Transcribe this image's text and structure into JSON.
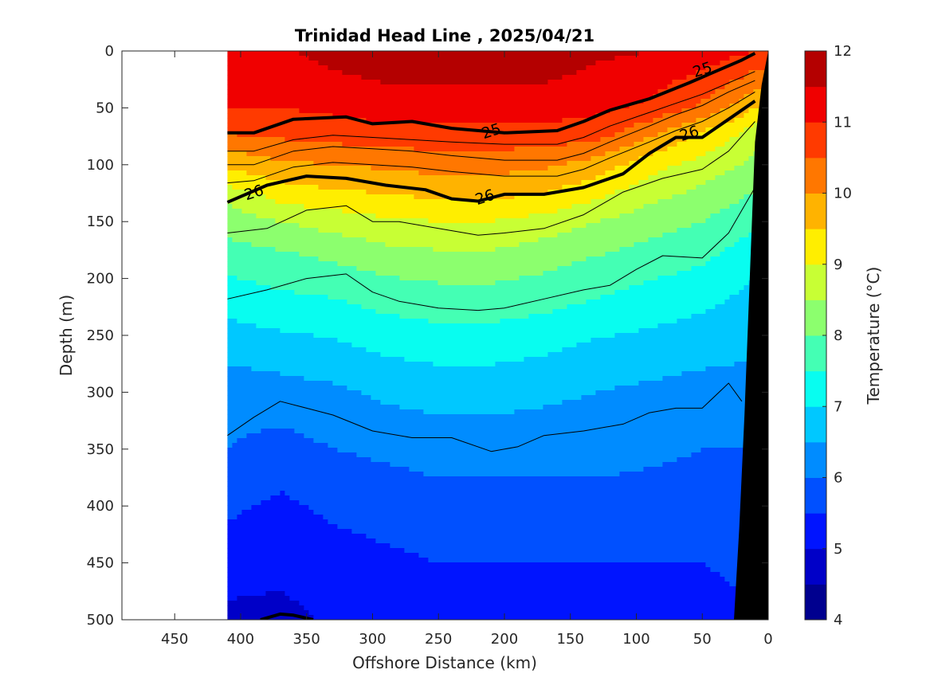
{
  "chart_data": {
    "type": "contour",
    "title": "Trinidad Head Line , 2025/04/21",
    "xlabel": "Offshore Distance (km)",
    "ylabel": "Depth (m)",
    "xlim": [
      490,
      0
    ],
    "x_reversed": true,
    "x_ticks": [
      450,
      400,
      350,
      300,
      250,
      200,
      150,
      100,
      50,
      0
    ],
    "ylim": [
      0,
      500
    ],
    "y_reversed": true,
    "y_ticks": [
      0,
      50,
      100,
      150,
      200,
      250,
      300,
      350,
      400,
      450,
      500
    ],
    "data_extent_km": [
      410,
      10
    ],
    "colorbar": {
      "label": "Temperature (°C)",
      "range": [
        4,
        12
      ],
      "ticks": [
        4,
        5,
        6,
        7,
        8,
        9,
        10,
        11,
        12
      ],
      "levels": [
        {
          "lo": 4.0,
          "hi": 4.5,
          "color": "#00008f"
        },
        {
          "lo": 4.5,
          "hi": 5.0,
          "color": "#0000c8"
        },
        {
          "lo": 5.0,
          "hi": 5.5,
          "color": "#0014ff"
        },
        {
          "lo": 5.5,
          "hi": 6.0,
          "color": "#0050ff"
        },
        {
          "lo": 6.0,
          "hi": 6.5,
          "color": "#008cff"
        },
        {
          "lo": 6.5,
          "hi": 7.0,
          "color": "#00c8ff"
        },
        {
          "lo": 7.0,
          "hi": 7.5,
          "color": "#08fdf0"
        },
        {
          "lo": 7.5,
          "hi": 8.0,
          "color": "#44ffb4"
        },
        {
          "lo": 8.0,
          "hi": 8.5,
          "color": "#8cff6e"
        },
        {
          "lo": 8.5,
          "hi": 9.0,
          "color": "#c8ff34"
        },
        {
          "lo": 9.0,
          "hi": 9.5,
          "color": "#ffee00"
        },
        {
          "lo": 9.5,
          "hi": 10.0,
          "color": "#ffb300"
        },
        {
          "lo": 10.0,
          "hi": 10.5,
          "color": "#ff7700"
        },
        {
          "lo": 10.5,
          "hi": 11.0,
          "color": "#ff3a00"
        },
        {
          "lo": 11.0,
          "hi": 11.5,
          "color": "#f00000"
        },
        {
          "lo": 11.5,
          "hi": 12.0,
          "color": "#b40000"
        }
      ]
    },
    "temperature_profile": {
      "x_km": [
        410,
        370,
        330,
        290,
        250,
        210,
        170,
        130,
        90,
        50,
        20,
        10
      ],
      "depth_m": [
        0,
        50,
        70,
        100,
        130,
        150,
        180,
        210,
        260,
        300,
        350,
        400,
        450,
        500
      ],
      "temp_c": [
        [
          11.3,
          11.4,
          11.7,
          11.9,
          11.9,
          11.9,
          11.9,
          11.6,
          11.5,
          11.3,
          11.1,
          11.0
        ],
        [
          11.0,
          11.0,
          11.1,
          11.2,
          11.2,
          11.2,
          11.2,
          11.1,
          10.9,
          10.4,
          9.8,
          9.5
        ],
        [
          10.6,
          10.7,
          10.8,
          10.9,
          10.9,
          10.9,
          10.9,
          10.8,
          10.2,
          9.5,
          9.0,
          8.8
        ],
        [
          9.6,
          9.9,
          10.0,
          10.1,
          10.2,
          10.2,
          10.1,
          9.8,
          9.2,
          8.8,
          8.5,
          8.3
        ],
        [
          8.6,
          9.1,
          9.3,
          9.4,
          9.5,
          9.5,
          9.4,
          9.0,
          8.6,
          8.3,
          8.0,
          7.9
        ],
        [
          8.2,
          8.5,
          8.7,
          8.9,
          9.0,
          9.0,
          8.8,
          8.5,
          8.2,
          8.0,
          7.7,
          7.6
        ],
        [
          7.8,
          7.9,
          8.1,
          8.3,
          8.4,
          8.4,
          8.2,
          8.0,
          7.8,
          7.6,
          7.3,
          7.2
        ],
        [
          7.3,
          7.5,
          7.6,
          7.8,
          7.9,
          7.9,
          7.8,
          7.6,
          7.4,
          7.2,
          7.0,
          6.9
        ],
        [
          6.7,
          6.8,
          6.9,
          7.1,
          7.2,
          7.2,
          7.1,
          6.9,
          6.8,
          6.7,
          6.6,
          6.6
        ],
        [
          6.2,
          6.3,
          6.4,
          6.6,
          6.7,
          6.7,
          6.6,
          6.5,
          6.4,
          6.3,
          6.3,
          6.3
        ],
        [
          6.0,
          5.8,
          6.0,
          6.1,
          6.2,
          6.2,
          6.2,
          6.2,
          6.1,
          6.0,
          6.0,
          6.0
        ],
        [
          5.6,
          5.4,
          5.6,
          5.7,
          5.8,
          5.8,
          5.8,
          5.8,
          5.8,
          5.8,
          5.9,
          5.9
        ],
        [
          5.2,
          5.2,
          5.3,
          5.4,
          5.5,
          5.5,
          5.5,
          5.5,
          5.5,
          5.5,
          5.6,
          5.6
        ],
        [
          4.9,
          4.8,
          5.1,
          5.2,
          5.3,
          5.3,
          5.3,
          5.3,
          5.3,
          5.3,
          5.4,
          5.4
        ]
      ]
    },
    "density_contours": [
      {
        "label": "25",
        "bold": true,
        "x_km": [
          410,
          390,
          360,
          320,
          300,
          270,
          240,
          200,
          160,
          140,
          120,
          90,
          60,
          40,
          20,
          10
        ],
        "depth_m": [
          72,
          72,
          60,
          58,
          64,
          62,
          68,
          72,
          70,
          62,
          52,
          42,
          28,
          18,
          8,
          2
        ]
      },
      {
        "label": "26",
        "bold": true,
        "x_km": [
          410,
          380,
          350,
          320,
          290,
          260,
          240,
          220,
          200,
          170,
          140,
          110,
          90,
          70,
          50,
          30,
          10
        ],
        "depth_m": [
          133,
          118,
          110,
          112,
          118,
          122,
          130,
          132,
          126,
          126,
          120,
          108,
          90,
          76,
          76,
          60,
          44
        ]
      },
      {
        "label": "",
        "bold": false,
        "x_km": [
          410,
          390,
          360,
          330,
          300,
          270,
          240,
          200,
          160,
          140,
          120,
          90,
          70,
          50,
          30,
          10
        ],
        "depth_m": [
          88,
          88,
          78,
          74,
          76,
          78,
          80,
          82,
          82,
          76,
          66,
          54,
          46,
          38,
          28,
          18
        ]
      },
      {
        "label": "",
        "bold": false,
        "x_km": [
          410,
          390,
          360,
          330,
          300,
          270,
          240,
          200,
          160,
          140,
          120,
          90,
          70,
          50,
          30,
          10
        ],
        "depth_m": [
          100,
          100,
          88,
          84,
          86,
          88,
          92,
          96,
          96,
          90,
          80,
          66,
          56,
          48,
          36,
          26
        ]
      },
      {
        "label": "",
        "bold": false,
        "x_km": [
          410,
          390,
          360,
          330,
          300,
          270,
          240,
          200,
          160,
          140,
          120,
          90,
          70,
          50,
          30,
          10
        ],
        "depth_m": [
          116,
          114,
          102,
          98,
          100,
          102,
          106,
          110,
          110,
          104,
          94,
          80,
          70,
          62,
          50,
          36
        ]
      },
      {
        "label": "",
        "bold": false,
        "x_km": [
          410,
          380,
          350,
          320,
          300,
          280,
          250,
          220,
          200,
          170,
          140,
          110,
          80,
          50,
          30,
          10
        ],
        "depth_m": [
          160,
          156,
          140,
          136,
          150,
          150,
          156,
          162,
          160,
          156,
          144,
          124,
          112,
          104,
          88,
          62
        ]
      },
      {
        "label": "",
        "bold": false,
        "x_km": [
          410,
          380,
          350,
          320,
          300,
          280,
          250,
          220,
          200,
          170,
          140,
          120,
          100,
          80,
          50,
          30,
          10
        ],
        "depth_m": [
          218,
          210,
          200,
          196,
          212,
          220,
          226,
          228,
          226,
          218,
          210,
          206,
          192,
          180,
          182,
          160,
          120
        ]
      },
      {
        "label": "",
        "bold": false,
        "x_km": [
          410,
          390,
          370,
          350,
          330,
          300,
          270,
          240,
          210,
          190,
          170,
          140,
          110,
          90,
          70,
          50,
          30,
          20
        ],
        "depth_m": [
          338,
          322,
          308,
          314,
          320,
          334,
          340,
          340,
          352,
          348,
          338,
          334,
          328,
          318,
          314,
          314,
          292,
          308
        ]
      },
      {
        "label": "",
        "bold": true,
        "x_km": [
          385,
          370,
          360,
          345
        ],
        "depth_m": [
          500,
          495,
          496,
          500
        ]
      }
    ],
    "contour_labels": [
      {
        "text": "25",
        "x_km": 50,
        "depth_m": 16
      },
      {
        "text": "25",
        "x_km": 210,
        "depth_m": 70
      },
      {
        "text": "26",
        "x_km": 60,
        "depth_m": 72
      },
      {
        "text": "26",
        "x_km": 215,
        "depth_m": 128
      },
      {
        "text": "26",
        "x_km": 390,
        "depth_m": 124
      }
    ],
    "bathymetry": {
      "x_km": [
        0,
        0,
        10,
        18,
        25,
        25
      ],
      "depth_m": [
        0,
        500,
        500,
        500,
        500,
        500
      ],
      "edge_x_km": [
        0,
        5,
        10,
        14,
        18,
        22,
        26
      ],
      "edge_depth_m": [
        0,
        30,
        80,
        200,
        320,
        420,
        500
      ],
      "color": "#000000"
    }
  }
}
